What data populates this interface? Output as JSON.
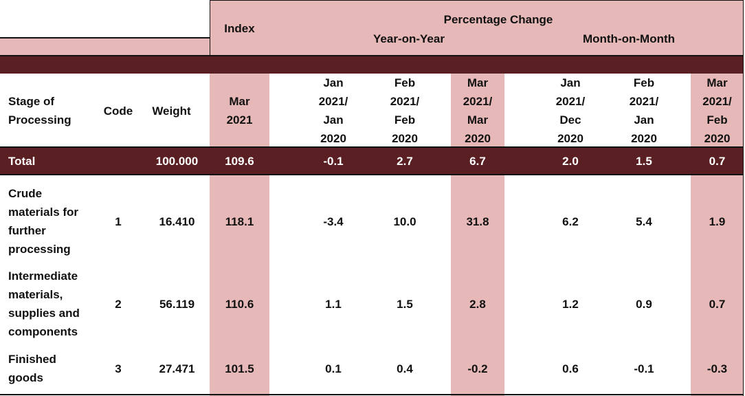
{
  "header": {
    "index": "Index",
    "percentage_change": "Percentage Change",
    "yoy": "Year-on-Year",
    "mom": "Month-on-Month"
  },
  "columns": {
    "stage": "Stage of\nProcessing",
    "code": "Code",
    "weight": "Weight",
    "index_period": "Mar\n2021",
    "yoy1": "Jan\n2021/\nJan\n2020",
    "yoy2": "Feb\n2021/\nFeb\n2020",
    "yoy3": "Mar\n2021/\nMar\n2020",
    "mom1": "Jan\n2021/\nDec\n2020",
    "mom2": "Feb\n2021/\nJan\n2020",
    "mom3": "Mar\n2021/\nFeb\n2020"
  },
  "total": {
    "label": "Total",
    "code": "",
    "weight": "100.000",
    "index": "109.6",
    "yoy1": "-0.1",
    "yoy2": "2.7",
    "yoy3": "6.7",
    "mom1": "2.0",
    "mom2": "1.5",
    "mom3": "0.7"
  },
  "rows": [
    {
      "label": "Crude\nmaterials for\nfurther\nprocessing",
      "code": "1",
      "weight": "16.410",
      "index": "118.1",
      "yoy1": "-3.4",
      "yoy2": "10.0",
      "yoy3": "31.8",
      "mom1": "6.2",
      "mom2": "5.4",
      "mom3": "1.9"
    },
    {
      "label": "Intermediate\nmaterials,\nsupplies and\ncomponents",
      "code": "2",
      "weight": "56.119",
      "index": "110.6",
      "yoy1": "1.1",
      "yoy2": "1.5",
      "yoy3": "2.8",
      "mom1": "1.2",
      "mom2": "0.9",
      "mom3": "0.7"
    },
    {
      "label": "Finished\ngoods",
      "code": "3",
      "weight": "27.471",
      "index": "101.5",
      "yoy1": "0.1",
      "yoy2": "0.4",
      "yoy3": "-0.2",
      "mom1": "0.6",
      "mom2": "-0.1",
      "mom3": "-0.3"
    }
  ],
  "colors": {
    "pink": "#e6b8b7",
    "maroon": "#5a1f22",
    "white": "#ffffff"
  }
}
